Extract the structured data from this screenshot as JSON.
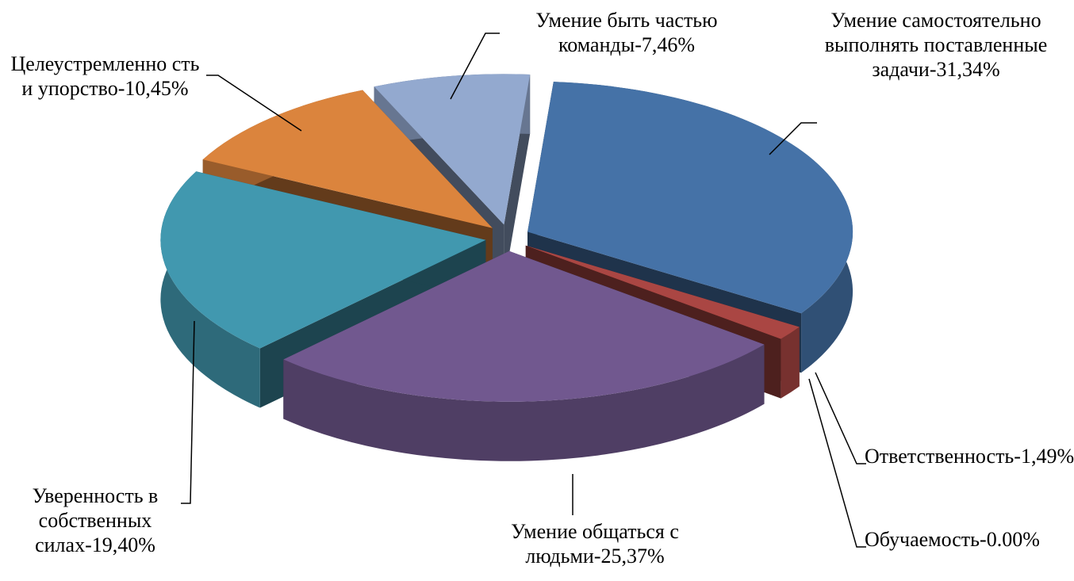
{
  "chart_data": {
    "type": "pie",
    "three_d": true,
    "exploded": true,
    "values": [
      31.34,
      1.49,
      0,
      25.37,
      19.4,
      10.45,
      7.46
    ],
    "value_labels": [
      "Умение самостоятельно выполнять поставленные задачи-31,34%",
      "Ответственность-1,49%",
      "Обучаемость-0.00%",
      "Умение общаться с людьми-25,37%",
      "Уверенность в собственных силах-19,40%",
      "Целеустремленно сть и упорство-10,45%",
      "Умение быть частью команды-7,46%"
    ],
    "colors": [
      "#4572a7",
      "#aa4643",
      "#89a54e",
      "#71588f",
      "#4198af",
      "#db843d",
      "#93a9cf"
    ]
  }
}
